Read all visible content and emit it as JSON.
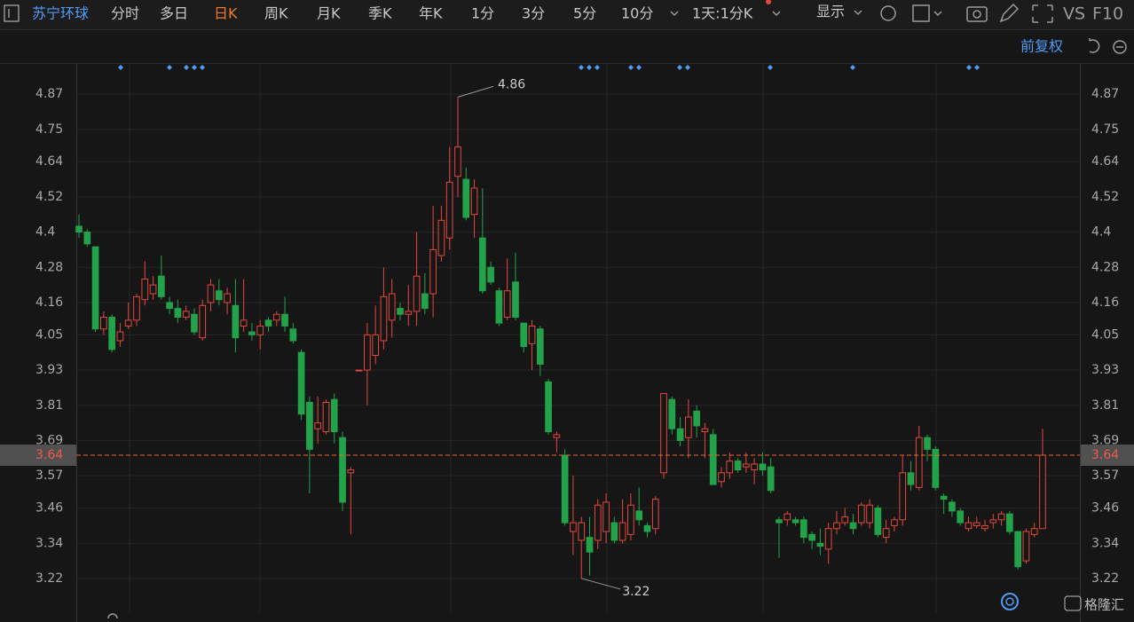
{
  "toolbar": {
    "stock": "苏宁环球",
    "tabs": [
      "分时",
      "多日",
      "日K",
      "周K",
      "月K",
      "季K",
      "年K",
      "1分",
      "3分",
      "5分",
      "10分"
    ],
    "period": "1天:1分K",
    "display": "显示",
    "vs": "VS",
    "f10": "F10"
  },
  "adjust": "前复权",
  "watermark": "格隆汇",
  "chart_data": {
    "type": "candlestick",
    "up_color": "#e5473c",
    "down_color": "#22a34a",
    "grid": true,
    "ylim": [
      3.105,
      4.973
    ],
    "yticks": [
      4.87,
      4.75,
      4.64,
      4.52,
      4.4,
      4.28,
      4.16,
      4.05,
      3.93,
      3.81,
      3.69,
      3.57,
      3.46,
      3.34,
      3.22
    ],
    "current_price": 3.64,
    "high_label": 4.86,
    "low_label": 3.22,
    "open": [
      4.42,
      4.4,
      4.35,
      4.07,
      4.11,
      4.03,
      4.08,
      4.1,
      4.17,
      4.19,
      4.25,
      4.16,
      4.14,
      4.11,
      4.12,
      4.04,
      4.16,
      4.2,
      4.16,
      4.15,
      4.08,
      4.06,
      4.05,
      4.1,
      4.1,
      4.12,
      4.07,
      3.99,
      3.82,
      3.73,
      3.72,
      3.83,
      3.7,
      3.58,
      3.93,
      3.93,
      3.98,
      4.03,
      4.1,
      4.14,
      4.12,
      4.13,
      4.19,
      4.19,
      4.32,
      4.38,
      4.59,
      4.58,
      4.46,
      4.38,
      4.28,
      4.2,
      4.11,
      4.23,
      4.09,
      4.02,
      4.07,
      3.89,
      3.7,
      3.64,
      3.38,
      3.35,
      3.36,
      3.35,
      3.38,
      3.41,
      3.35,
      3.37,
      3.45,
      3.4,
      3.39,
      3.58,
      3.83,
      3.73,
      3.7,
      3.79,
      3.72,
      3.71,
      3.55,
      3.58,
      3.62,
      3.6,
      3.59,
      3.61,
      3.6,
      3.42,
      3.42,
      3.42,
      3.42,
      3.37,
      3.34,
      3.32,
      3.39,
      3.41,
      3.41,
      3.41,
      3.41,
      3.46,
      3.36,
      3.4,
      3.42,
      3.58,
      3.53,
      3.7,
      3.66,
      3.5,
      3.48,
      3.45,
      3.39,
      3.4,
      3.39,
      3.41,
      3.42,
      3.44,
      3.38,
      3.28,
      3.37,
      3.39
    ],
    "high": [
      4.46,
      4.41,
      4.35,
      4.13,
      4.12,
      4.09,
      4.16,
      4.19,
      4.3,
      4.25,
      4.32,
      4.18,
      4.17,
      4.15,
      4.14,
      4.17,
      4.24,
      4.24,
      4.21,
      4.24,
      4.24,
      4.09,
      4.1,
      4.11,
      4.13,
      4.18,
      4.09,
      4.0,
      3.84,
      3.84,
      3.83,
      3.85,
      3.72,
      3.6,
      3.93,
      4.09,
      4.15,
      4.28,
      4.24,
      4.16,
      4.22,
      4.4,
      4.26,
      4.49,
      4.49,
      4.69,
      4.86,
      4.62,
      4.58,
      4.55,
      4.3,
      4.21,
      4.31,
      4.33,
      4.09,
      4.1,
      4.08,
      3.9,
      3.72,
      3.66,
      3.57,
      3.43,
      3.43,
      3.49,
      3.51,
      3.43,
      3.49,
      3.51,
      3.53,
      3.41,
      3.5,
      3.85,
      3.84,
      3.77,
      3.83,
      3.81,
      3.75,
      3.73,
      3.6,
      3.65,
      3.63,
      3.65,
      3.63,
      3.65,
      3.63,
      3.43,
      3.45,
      3.43,
      3.43,
      3.38,
      3.39,
      3.41,
      3.45,
      3.46,
      3.44,
      3.48,
      3.49,
      3.47,
      3.42,
      3.43,
      3.64,
      3.62,
      3.74,
      3.71,
      3.67,
      3.51,
      3.49,
      3.46,
      3.43,
      3.43,
      3.42,
      3.44,
      3.45,
      3.45,
      3.38,
      3.39,
      3.41,
      3.73
    ],
    "low": [
      4.38,
      4.35,
      4.06,
      4.05,
      3.99,
      4.01,
      4.07,
      4.08,
      4.15,
      4.17,
      4.17,
      4.12,
      4.09,
      4.1,
      4.05,
      4.03,
      4.13,
      4.15,
      4.12,
      3.99,
      4.06,
      4.03,
      4.0,
      4.06,
      4.08,
      4.06,
      4.02,
      3.76,
      3.51,
      3.68,
      3.71,
      3.68,
      3.45,
      3.37,
      3.93,
      3.81,
      3.95,
      4.0,
      4.04,
      4.1,
      4.08,
      4.08,
      4.12,
      4.11,
      4.3,
      4.34,
      4.52,
      4.44,
      4.38,
      4.19,
      4.22,
      4.08,
      4.1,
      4.1,
      3.99,
      3.93,
      3.91,
      3.71,
      3.65,
      3.4,
      3.3,
      3.22,
      3.23,
      3.32,
      3.34,
      3.34,
      3.34,
      3.35,
      3.4,
      3.36,
      3.37,
      3.56,
      3.71,
      3.67,
      3.63,
      3.7,
      3.63,
      3.54,
      3.53,
      3.56,
      3.58,
      3.58,
      3.54,
      3.57,
      3.51,
      3.29,
      3.4,
      3.4,
      3.34,
      3.32,
      3.3,
      3.27,
      3.37,
      3.4,
      3.37,
      3.4,
      3.39,
      3.36,
      3.34,
      3.38,
      3.4,
      3.52,
      3.52,
      3.62,
      3.52,
      3.44,
      3.43,
      3.4,
      3.38,
      3.39,
      3.38,
      3.39,
      3.4,
      3.37,
      3.25,
      3.27,
      3.36,
      3.39
    ],
    "close": [
      4.4,
      4.36,
      4.07,
      4.11,
      4.0,
      4.06,
      4.1,
      4.18,
      4.24,
      4.22,
      4.18,
      4.14,
      4.11,
      4.13,
      4.06,
      4.15,
      4.22,
      4.17,
      4.19,
      4.04,
      4.1,
      4.05,
      4.08,
      4.08,
      4.12,
      4.08,
      4.03,
      3.78,
      3.66,
      3.75,
      3.82,
      3.72,
      3.48,
      3.59,
      3.93,
      4.05,
      4.05,
      4.18,
      4.19,
      4.12,
      4.13,
      4.25,
      4.14,
      4.34,
      4.44,
      4.57,
      4.69,
      4.45,
      4.55,
      4.2,
      4.23,
      4.09,
      4.2,
      4.11,
      4.01,
      4.08,
      3.95,
      3.72,
      3.71,
      3.41,
      3.41,
      3.41,
      3.31,
      3.47,
      3.48,
      3.35,
      3.41,
      3.47,
      3.42,
      3.38,
      3.49,
      3.85,
      3.73,
      3.69,
      3.77,
      3.74,
      3.73,
      3.54,
      3.58,
      3.62,
      3.59,
      3.61,
      3.61,
      3.59,
      3.52,
      3.41,
      3.44,
      3.41,
      3.36,
      3.35,
      3.33,
      3.39,
      3.41,
      3.43,
      3.39,
      3.47,
      3.47,
      3.37,
      3.39,
      3.42,
      3.58,
      3.54,
      3.7,
      3.66,
      3.53,
      3.49,
      3.45,
      3.41,
      3.41,
      3.41,
      3.4,
      3.42,
      3.44,
      3.38,
      3.26,
      3.38,
      3.39,
      3.64
    ]
  }
}
